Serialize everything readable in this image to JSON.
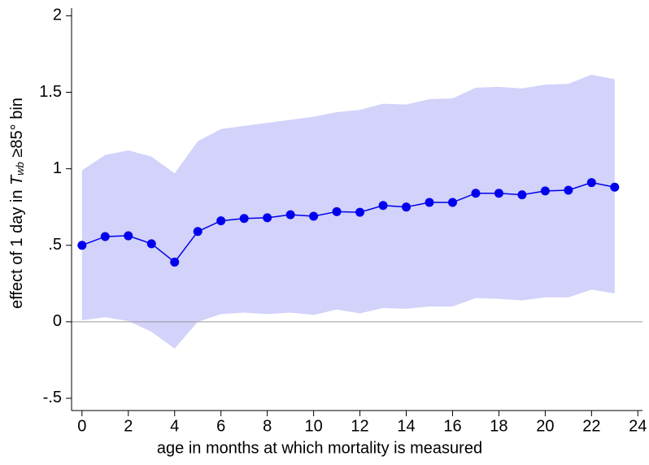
{
  "chart_data": {
    "type": "line",
    "xlabel": "age in months at which mortality is measured",
    "ylabel": [
      "effect of 1 day in",
      "T",
      "wb",
      "≥85° bin"
    ],
    "x": [
      0,
      1,
      2,
      3,
      4,
      5,
      6,
      7,
      8,
      9,
      10,
      11,
      12,
      13,
      14,
      15,
      16,
      17,
      18,
      19,
      20,
      21,
      22,
      23
    ],
    "series": [
      {
        "color": "#0000ee",
        "band_color": "#d2d2fa",
        "values": [
          0.5,
          0.557,
          0.562,
          0.51,
          0.39,
          0.59,
          0.66,
          0.675,
          0.68,
          0.7,
          0.69,
          0.72,
          0.716,
          0.76,
          0.75,
          0.78,
          0.78,
          0.84,
          0.84,
          0.83,
          0.855,
          0.86,
          0.91,
          0.88
        ],
        "upper": [
          0.99,
          1.09,
          1.12,
          1.08,
          0.97,
          1.18,
          1.26,
          1.28,
          1.3,
          1.32,
          1.34,
          1.37,
          1.385,
          1.425,
          1.42,
          1.455,
          1.46,
          1.53,
          1.535,
          1.525,
          1.55,
          1.555,
          1.615,
          1.585
        ],
        "lower": [
          0.01,
          0.03,
          0.005,
          -0.065,
          -0.175,
          0,
          0.05,
          0.06,
          0.05,
          0.06,
          0.045,
          0.08,
          0.055,
          0.09,
          0.085,
          0.1,
          0.1,
          0.155,
          0.15,
          0.14,
          0.16,
          0.16,
          0.21,
          0.185
        ]
      }
    ],
    "xlim": [
      -0.45,
      24.2
    ],
    "ylim": [
      -0.58,
      2.05
    ],
    "xticks": [
      0,
      2,
      4,
      6,
      8,
      10,
      12,
      14,
      16,
      18,
      20,
      22,
      24
    ],
    "yticks": [
      {
        "value": -0.5,
        "label": "-.5"
      },
      0,
      {
        "value": 0.5,
        "label": ".5"
      },
      1,
      1.5,
      2
    ],
    "reference_line": 0
  }
}
